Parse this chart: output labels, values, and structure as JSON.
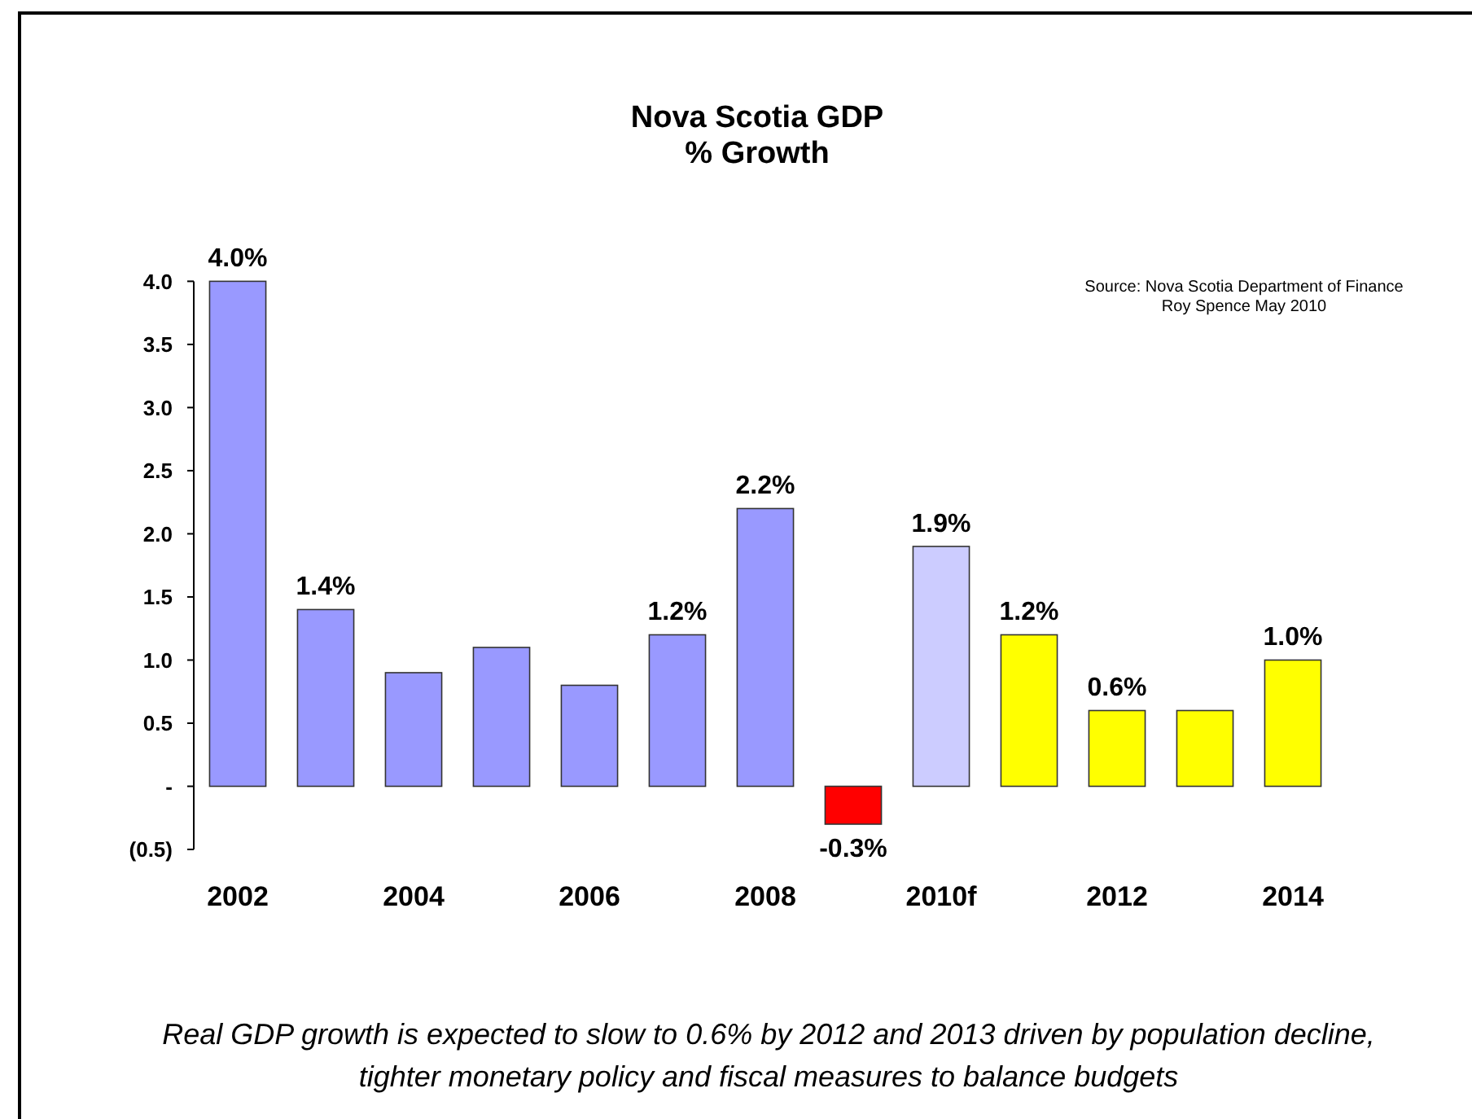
{
  "chart_data": {
    "type": "bar",
    "title": "Nova Scotia GDP",
    "subtitle": "% Growth",
    "categories": [
      "2002",
      null,
      "2004",
      null,
      "2006",
      null,
      "2008",
      null,
      "2010f",
      null,
      "2012",
      null,
      "2014"
    ],
    "values": [
      4.0,
      1.4,
      0.9,
      1.1,
      0.8,
      1.2,
      2.2,
      -0.3,
      1.9,
      1.2,
      0.6,
      0.6,
      1.0
    ],
    "colors": [
      "#9999ff",
      "#9999ff",
      "#9999ff",
      "#9999ff",
      "#9999ff",
      "#9999ff",
      "#9999ff",
      "#ff0000",
      "#ccccff",
      "#ffff00",
      "#ffff00",
      "#ffff00",
      "#ffff00"
    ],
    "value_labels": [
      "4.0%",
      "1.4%",
      null,
      null,
      null,
      "1.2%",
      "2.2%",
      "-0.3%",
      "1.9%",
      "1.2%",
      "0.6%",
      null,
      "1.0%"
    ],
    "ylim": [
      -0.5,
      4
    ],
    "yticks": [
      {
        "value": -0.5,
        "label": "(0.5)"
      },
      {
        "value": 0,
        "label": "-"
      },
      {
        "value": 0.5,
        "label": "0.5"
      },
      {
        "value": 1,
        "label": "1.0"
      },
      {
        "value": 1.5,
        "label": "1.5"
      },
      {
        "value": 2,
        "label": "2.0"
      },
      {
        "value": 2.5,
        "label": "2.5"
      },
      {
        "value": 3,
        "label": "3.0"
      },
      {
        "value": 3.5,
        "label": "3.5"
      },
      {
        "value": 4,
        "label": "4.0"
      }
    ],
    "annotations": [
      "Source: Nova Scotia Department of Finance",
      "Roy Spence May 2010",
      "Real GDP growth is expected to slow to 0.6% by 2012 and 2013 driven by population decline, tighter monetary policy and fiscal measures to balance budgets"
    ]
  }
}
